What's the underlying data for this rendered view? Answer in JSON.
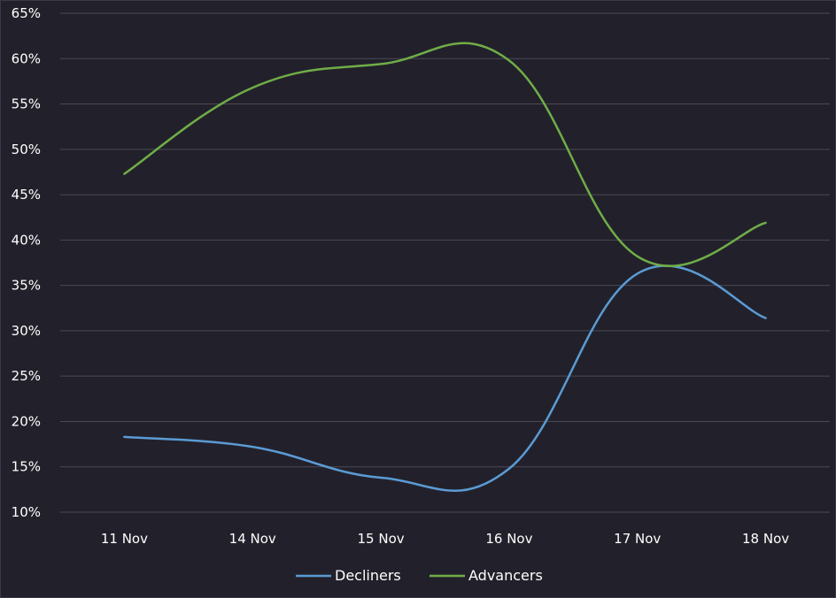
{
  "chart_data": {
    "type": "line",
    "title": "",
    "xlabel": "",
    "ylabel": "",
    "categories": [
      "11 Nov",
      "14 Nov",
      "15 Nov",
      "16 Nov",
      "17 Nov",
      "18 Nov"
    ],
    "y_ticks": [
      "10%",
      "15%",
      "20%",
      "25%",
      "30%",
      "35%",
      "40%",
      "45%",
      "50%",
      "55%",
      "60%",
      "65%"
    ],
    "ylim": [
      10,
      65
    ],
    "grid": true,
    "legend_position": "bottom",
    "series": [
      {
        "name": "Decliners",
        "color": "#5b9bd5",
        "values": [
          18.3,
          17.2,
          13.8,
          14.8,
          36.3,
          31.4
        ]
      },
      {
        "name": "Advancers",
        "color": "#70ad47",
        "values": [
          47.3,
          56.8,
          59.4,
          59.8,
          38.2,
          41.9
        ]
      }
    ]
  }
}
